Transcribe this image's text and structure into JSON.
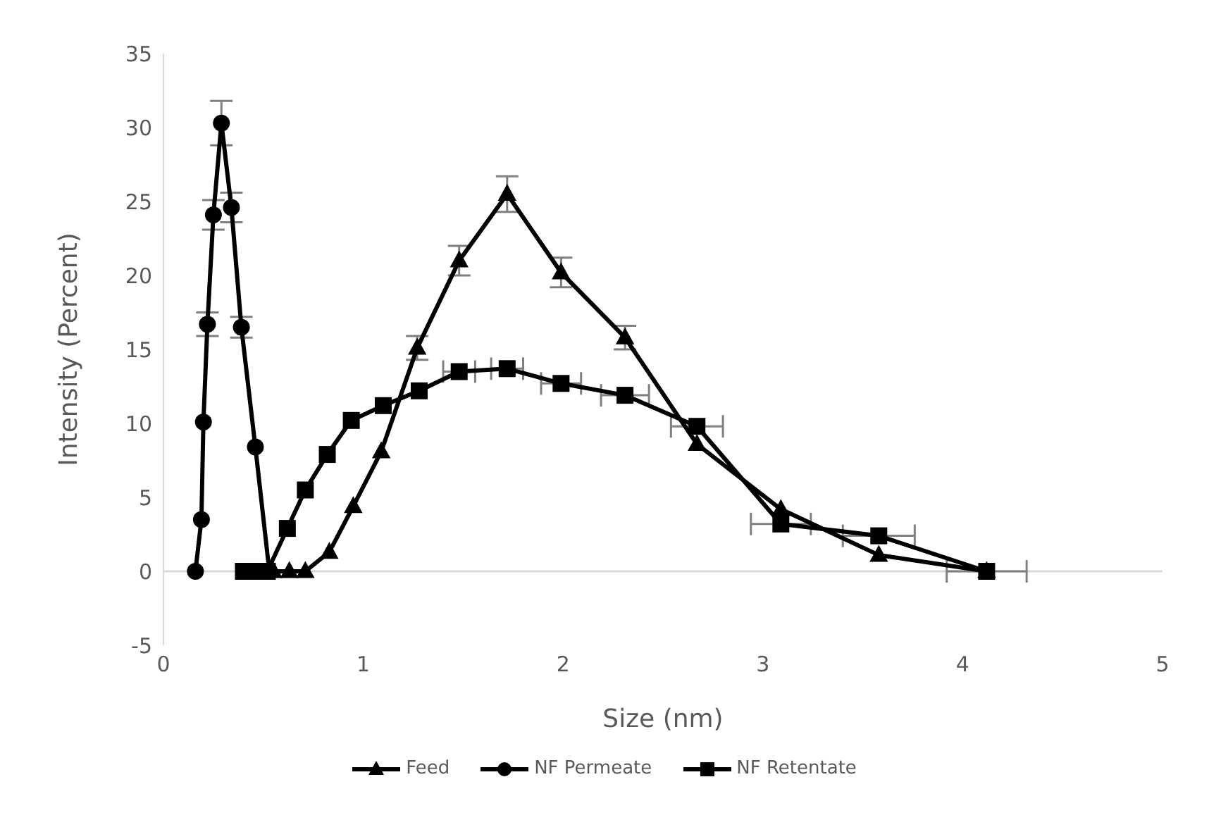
{
  "chart_data": {
    "type": "line",
    "xlabel": "Size (nm)",
    "ylabel": "Intensity (Percent)",
    "xlim": [
      0,
      5
    ],
    "xticks": [
      0,
      1,
      2,
      3,
      4,
      5
    ],
    "ylim": [
      -5,
      35
    ],
    "yticks": [
      -5,
      0,
      5,
      10,
      15,
      20,
      25,
      30,
      35
    ],
    "legend": "bottom",
    "series": [
      {
        "name": "Feed",
        "color": "#000000",
        "marker": "triangle",
        "x": [
          0.55,
          0.63,
          0.71,
          0.83,
          0.95,
          1.09,
          1.27,
          1.48,
          1.72,
          1.99,
          2.31,
          2.67,
          3.09,
          3.58,
          4.12
        ],
        "values": [
          0,
          0,
          0,
          1.3,
          4.4,
          8.1,
          15.1,
          21,
          25.5,
          20.2,
          15.8,
          8.6,
          4.2,
          1.1,
          0
        ],
        "errors": [
          null,
          null,
          null,
          null,
          null,
          null,
          0.8,
          1,
          1.2,
          1,
          0.8,
          null,
          null,
          null,
          null
        ]
      },
      {
        "name": "NF Permeate",
        "color": "#000000",
        "marker": "circle",
        "x": [
          0.16,
          0.19,
          0.2,
          0.22,
          0.25,
          0.29,
          0.34,
          0.39,
          0.46,
          0.53
        ],
        "values": [
          0,
          3.5,
          10.1,
          16.7,
          24.1,
          30.3,
          24.6,
          16.5,
          8.4,
          0
        ],
        "errors": [
          null,
          null,
          null,
          0.8,
          1,
          1.5,
          1,
          0.7,
          null,
          null
        ]
      },
      {
        "name": "NF Retentate",
        "color": "#000000",
        "marker": "square",
        "x": [
          0.4,
          0.46,
          0.52,
          0.62,
          0.71,
          0.82,
          0.94,
          1.1,
          1.28,
          1.48,
          1.72,
          1.99,
          2.31,
          2.67,
          3.09,
          3.58,
          4.12
        ],
        "values": [
          0,
          0,
          0,
          2.9,
          5.5,
          7.9,
          10.2,
          11.2,
          12.2,
          13.5,
          13.7,
          12.7,
          11.9,
          9.8,
          3.2,
          2.4,
          0
        ],
        "xerrors": [
          null,
          null,
          null,
          null,
          null,
          null,
          null,
          null,
          null,
          0.08,
          0.08,
          0.1,
          0.12,
          0.13,
          0.15,
          0.18,
          0.2
        ]
      }
    ]
  }
}
